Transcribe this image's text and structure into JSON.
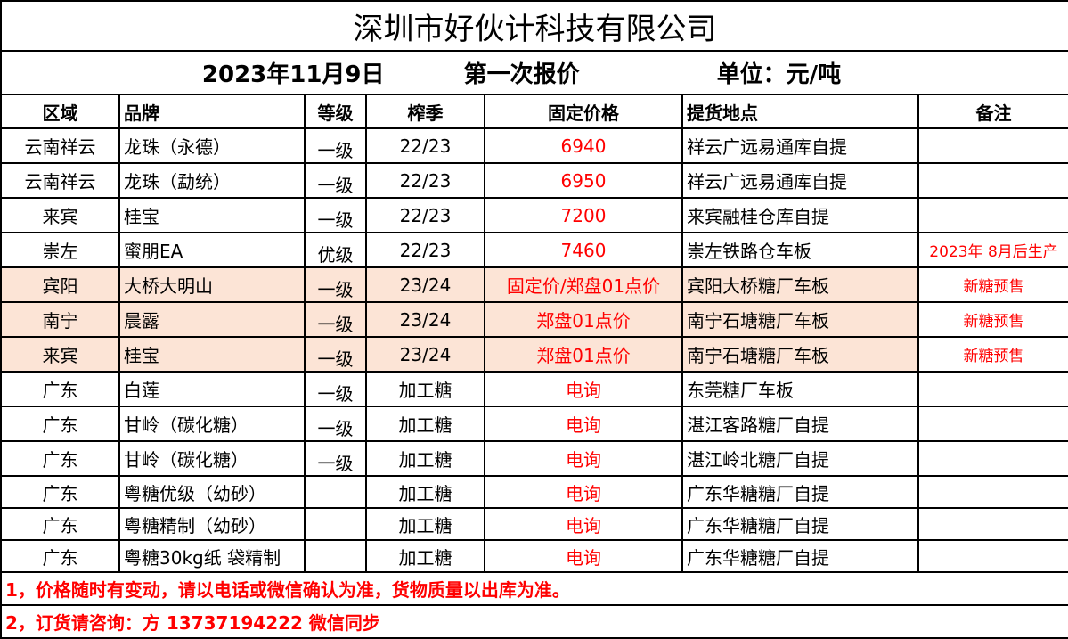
{
  "title": "深圳市好伙计科技有限公司",
  "subtitle": {
    "date": "2023年11月9日",
    "quote": "第一次报价",
    "unit": "单位：元/吨"
  },
  "headers": [
    "区域",
    "品牌",
    "等级",
    "榨季",
    "固定价格",
    "提货地点",
    "备注"
  ],
  "rows": [
    {
      "region": "云南祥云",
      "brand": "龙珠（永德）",
      "grade": "一级",
      "season": "22/23",
      "price": "6940",
      "location": "祥云广远易通库自提",
      "remark": "",
      "highlight": false
    },
    {
      "region": "云南祥云",
      "brand": "龙珠（勐统）",
      "grade": "一级",
      "season": "22/23",
      "price": "6950",
      "location": "祥云广远易通库自提",
      "remark": "",
      "highlight": false
    },
    {
      "region": "来宾",
      "brand": "桂宝",
      "grade": "一级",
      "season": "22/23",
      "price": "7200",
      "location": "来宾融桂仓库自提",
      "remark": "",
      "highlight": false
    },
    {
      "region": "崇左",
      "brand": "蜜朋EA",
      "grade": "优级",
      "season": "22/23",
      "price": "7460",
      "location": "崇左铁路仓车板",
      "remark": "2023年 8月后生产",
      "highlight": false
    },
    {
      "region": "宾阳",
      "brand": "大桥大明山",
      "grade": "一级",
      "season": "23/24",
      "price": "固定价/郑盘01点价",
      "location": "宾阳大桥糖厂车板",
      "remark": "新糖预售",
      "highlight": true
    },
    {
      "region": "南宁",
      "brand": "晨露",
      "grade": "一级",
      "season": "23/24",
      "price": "郑盘01点价",
      "location": "南宁石塘糖厂车板",
      "remark": "新糖预售",
      "highlight": true
    },
    {
      "region": "来宾",
      "brand": "桂宝",
      "grade": "一级",
      "season": "23/24",
      "price": "郑盘01点价",
      "location": "南宁石塘糖厂车板",
      "remark": "新糖预售",
      "highlight": true
    },
    {
      "region": "广东",
      "brand": "白莲",
      "grade": "一级",
      "season": "加工糖",
      "price": "电询",
      "location": "东莞糖厂车板",
      "remark": "",
      "highlight": false
    },
    {
      "region": "广东",
      "brand": "甘岭（碳化糖）",
      "grade": "一级",
      "season": "加工糖",
      "price": "电询",
      "location": "湛江客路糖厂自提",
      "remark": "",
      "highlight": false
    },
    {
      "region": "广东",
      "brand": "甘岭（碳化糖）",
      "grade": "一级",
      "season": "加工糖",
      "price": "电询",
      "location": "湛江岭北糖厂自提",
      "remark": "",
      "highlight": false
    },
    {
      "region": "广东",
      "brand": "粤糖优级（幼砂）",
      "grade": "",
      "season": "加工糖",
      "price": "电询",
      "location": "广东华糖糖厂自提",
      "remark": "",
      "highlight": false
    },
    {
      "region": "广东",
      "brand": "粤糖精制（幼砂）",
      "grade": "",
      "season": "加工糖",
      "price": "电询",
      "location": "广东华糖糖厂自提",
      "remark": "",
      "highlight": false
    },
    {
      "region": "广东",
      "brand": "粤糖30kg纸 袋精制",
      "grade": "",
      "season": "加工糖",
      "price": "电询",
      "location": "广东华糖糖厂自提",
      "remark": "",
      "highlight": false
    }
  ],
  "notes": [
    "1，价格随时有变动，请以电话或微信确认为准，货物质量以出库为准。",
    "2，订货请咨询：方  13737194222    微信同步"
  ],
  "colors": {
    "price_red": "#ff0000",
    "highlight": "#fce4d6"
  }
}
